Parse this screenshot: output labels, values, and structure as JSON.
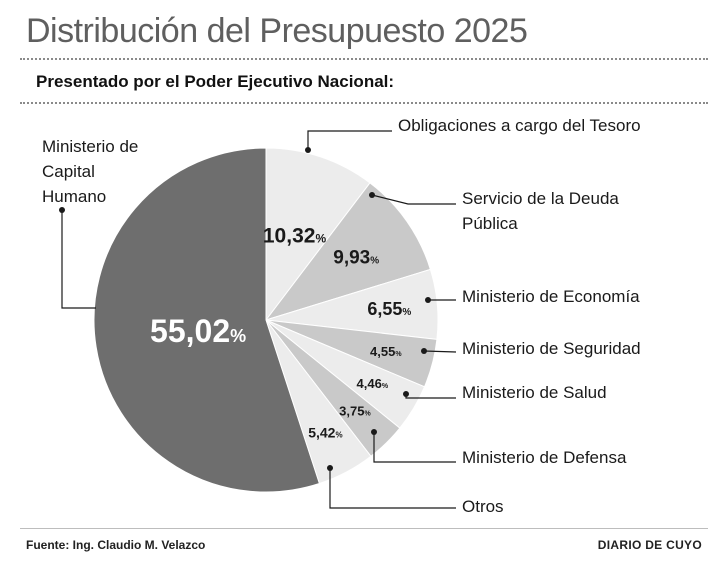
{
  "header": {
    "title": "Distribución del Presupuesto 2025",
    "subtitle": "Presentado por el Poder Ejecutivo Nacional:"
  },
  "footer": {
    "source": "Fuente: Ing. Claudio M. Velazco",
    "brand": "DIARIO DE CUYO"
  },
  "chart_data": {
    "type": "pie",
    "title": "Distribución del Presupuesto 2025",
    "subtitle": "Presentado por el Poder Ejecutivo Nacional:",
    "unit": "%",
    "slices": [
      {
        "label": "Obligaciones a cargo del Tesoro",
        "lines": [
          "Obligaciones a cargo del Tesoro"
        ],
        "value": 10.32,
        "display": "10,32",
        "color": "#ececec"
      },
      {
        "label": "Servicio de la Deuda Pública",
        "lines": [
          "Servicio de la Deuda",
          "Pública"
        ],
        "value": 9.93,
        "display": "9,93",
        "color": "#c9c9c9"
      },
      {
        "label": "Ministerio de Economía",
        "lines": [
          "Ministerio de Economía"
        ],
        "value": 6.55,
        "display": "6,55",
        "color": "#ececec"
      },
      {
        "label": "Ministerio de Seguridad",
        "lines": [
          "Ministerio de Seguridad"
        ],
        "value": 4.55,
        "display": "4,55",
        "color": "#c9c9c9"
      },
      {
        "label": "Ministerio de Salud",
        "lines": [
          "Ministerio de Salud"
        ],
        "value": 4.46,
        "display": "4,46",
        "color": "#ececec"
      },
      {
        "label": "Ministerio de Defensa",
        "lines": [
          "Ministerio de Defensa"
        ],
        "value": 3.75,
        "display": "3,75",
        "color": "#c9c9c9"
      },
      {
        "label": "Otros",
        "lines": [
          "Otros"
        ],
        "value": 5.42,
        "display": "5,42",
        "color": "#ececec"
      },
      {
        "label": "Ministerio de Capital Humano",
        "lines": [
          "Ministerio de",
          "Capital",
          "Humano"
        ],
        "value": 55.02,
        "display": "55,02",
        "color": "#6e6e6e"
      }
    ]
  }
}
